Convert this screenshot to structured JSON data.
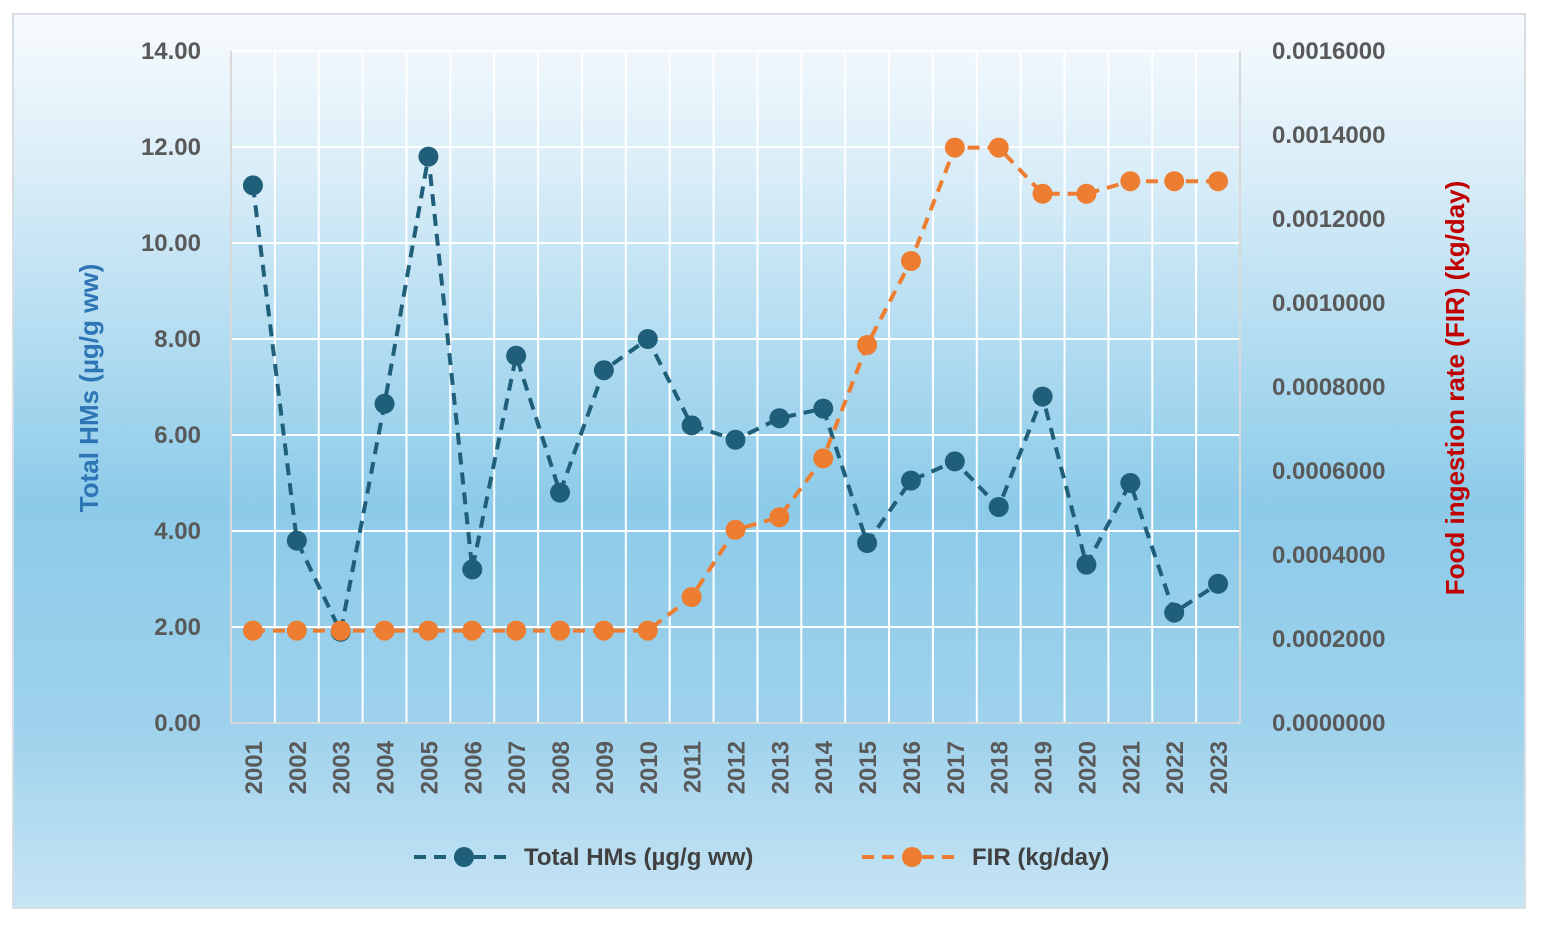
{
  "chart_data": {
    "type": "line",
    "x": [
      "2001",
      "2002",
      "2003",
      "2004",
      "2005",
      "2006",
      "2007",
      "2008",
      "2009",
      "2010",
      "2011",
      "2012",
      "2013",
      "2014",
      "2015",
      "2016",
      "2017",
      "2018",
      "2019",
      "2020",
      "2021",
      "2022",
      "2023"
    ],
    "series": [
      {
        "name": "Total HMs (µg/g ww)",
        "axis": "left",
        "color": "#1f5f7a",
        "line_style": "dashed",
        "marker": "circle",
        "values": [
          11.2,
          3.8,
          1.9,
          6.65,
          11.8,
          3.2,
          7.65,
          4.8,
          7.35,
          8.0,
          6.2,
          5.9,
          6.35,
          6.55,
          3.75,
          5.05,
          5.45,
          4.5,
          6.8,
          3.3,
          5.0,
          2.3,
          2.9
        ]
      },
      {
        "name": "FIR (kg/day)",
        "axis": "right",
        "color": "#ed7d31",
        "line_style": "dashed",
        "marker": "circle",
        "values": [
          0.00022,
          0.00022,
          0.00022,
          0.00022,
          0.00022,
          0.00022,
          0.00022,
          0.00022,
          0.00022,
          0.00022,
          0.0003,
          0.00046,
          0.00049,
          0.00063,
          0.0009,
          0.0011,
          0.00137,
          0.00137,
          0.00126,
          0.00126,
          0.00129,
          0.00129,
          0.00129
        ]
      }
    ],
    "ylabel_left": "Total HMs (µg/g ww)",
    "ylabel_right": "Food ingestion rate (FIR) (kg/day)",
    "ylabel_left_color": "#2e75b6",
    "ylabel_right_color": "#c00000",
    "ylim_left": [
      0,
      14
    ],
    "ylim_right": [
      0,
      0.0016
    ],
    "yticks_left": [
      "0.00",
      "2.00",
      "4.00",
      "6.00",
      "8.00",
      "10.00",
      "12.00",
      "14.00"
    ],
    "yticks_right": [
      "0.0000000",
      "0.0002000",
      "0.0004000",
      "0.0006000",
      "0.0008000",
      "0.0010000",
      "0.0012000",
      "0.0014000",
      "0.0016000"
    ],
    "grid": true,
    "legend_position": "bottom"
  }
}
